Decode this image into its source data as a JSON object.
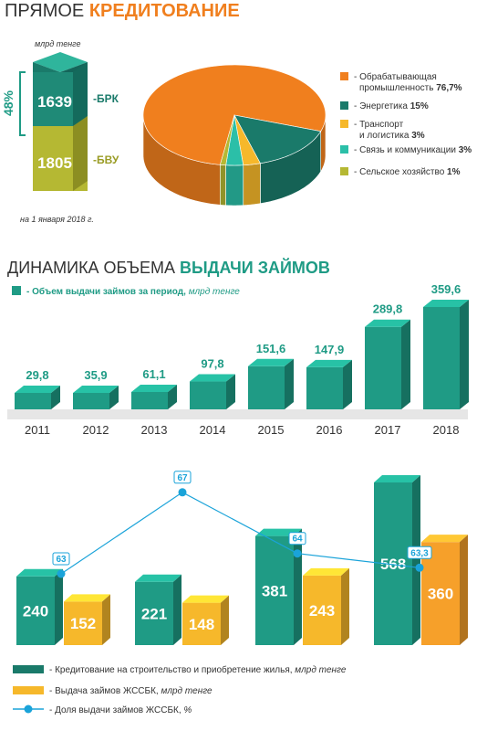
{
  "header": {
    "title_light": "ПРЯМОЕ ",
    "title_bold": "КРЕДИТОВАНИЕ"
  },
  "stack": {
    "unit": "млрд тенге",
    "percent_label": "48%",
    "top_value": "1639",
    "top_label": "-БРК",
    "bottom_value": "1805",
    "bottom_label": "-БВУ",
    "date_note": "на 1 января 2018 г."
  },
  "pie": {
    "legend": [
      {
        "text": "- Обрабатывающая",
        "text2": "промышленность",
        "pct": "76,7%",
        "color": "#f07f1e"
      },
      {
        "text": "- Энергетика",
        "text2": "",
        "pct": "15%",
        "color": "#1a7a6a"
      },
      {
        "text": "- Транспорт",
        "text2": "и логистика",
        "pct": "3%",
        "color": "#f6b82b"
      },
      {
        "text": "- Связь и коммуникации",
        "text2": "",
        "pct": "3%",
        "color": "#2bbfa8"
      },
      {
        "text": "- Сельское хозяйство",
        "text2": "",
        "pct": "1%",
        "color": "#b5b833"
      }
    ]
  },
  "section2": {
    "title_light": "ДИНАМИКА ОБЪЕМА ",
    "title_bold": "ВЫДАЧИ ЗАЙМОВ",
    "legend_text": "- Объем выдачи займов за период,",
    "legend_unit": "млрд тенге"
  },
  "bottom_legend": {
    "item1": "- Кредитование на строительство и приобретение жилья,",
    "item1_unit": "млрд тенге",
    "item2": "- Выдача займов ЖССБК,",
    "item2_unit": "млрд тенге",
    "item3": "- Доля выдачи займов ЖССБК,",
    "item3_unit": "%"
  },
  "colors": {
    "teal": "#1f9b85",
    "teal_dark": "#156f60",
    "teal_light": "#2fb59c",
    "orange": "#f07f1e",
    "yellow": "#f6b82b",
    "olive": "#b5b833",
    "blue": "#1aa3d9"
  },
  "chart_data": [
    {
      "type": "pie",
      "categories": [
        "Обрабатывающая промышленность",
        "Энергетика",
        "Транспорт и логистика",
        "Связь и коммуникации",
        "Сельское хозяйство"
      ],
      "values": [
        76.7,
        15,
        3,
        3,
        1
      ]
    },
    {
      "type": "bar",
      "categories": [
        "2011",
        "2012",
        "2013",
        "2014",
        "2015",
        "2016",
        "2017",
        "2018"
      ],
      "values": [
        29.8,
        35.9,
        61.1,
        97.8,
        151.6,
        147.9,
        289.8,
        359.6
      ],
      "value_labels": [
        "29,8",
        "35,9",
        "61,1",
        "97,8",
        "151,6",
        "147,9",
        "289,8",
        "359,6"
      ]
    },
    {
      "type": "bar",
      "groups": 4,
      "series": [
        {
          "name": "Кредитование на строительство и приобретение жилья, млрд тенге",
          "values": [
            240,
            221,
            381,
            568
          ]
        },
        {
          "name": "Выдача займов ЖССБК, млрд тенге",
          "values": [
            152,
            148,
            243,
            360
          ]
        },
        {
          "name": "Доля выдачи займов ЖССБК, %",
          "values": [
            63,
            67,
            64,
            63.3
          ],
          "labels": [
            "63",
            "67",
            "64",
            "63,3"
          ]
        }
      ]
    }
  ]
}
